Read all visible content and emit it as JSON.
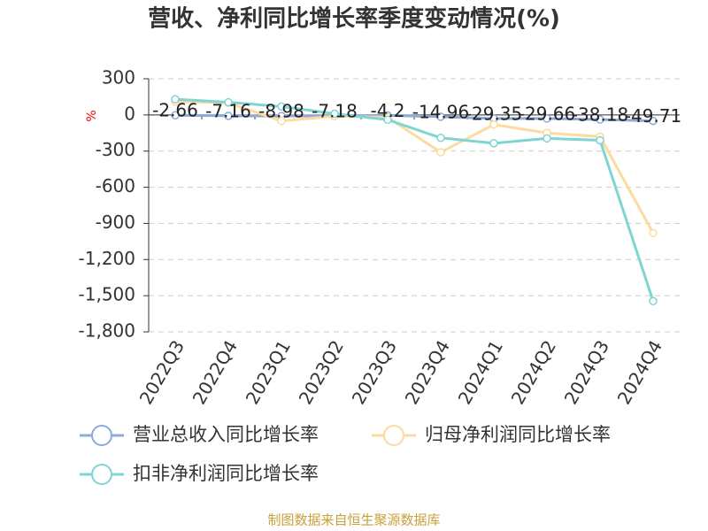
{
  "chart_data": {
    "type": "line",
    "title": "营收、净利同比增长率季度变动情况(%)",
    "y_label": "%",
    "categories": [
      "2022Q3",
      "2022Q4",
      "2023Q1",
      "2023Q2",
      "2023Q3",
      "2023Q4",
      "2024Q1",
      "2024Q2",
      "2024Q3",
      "2024Q4"
    ],
    "series": [
      {
        "name": "营业总收入同比增长率",
        "color": "#8eaadb",
        "show_labels": true,
        "values": [
          -2.66,
          -7.16,
          -8.98,
          -7.18,
          -4.2,
          -14.96,
          -29.35,
          -29.66,
          -38.18,
          -49.71
        ]
      },
      {
        "name": "归母净利润同比增长率",
        "color": "#fddb9e",
        "values": [
          110,
          100,
          -50,
          -10,
          -20,
          -310,
          -80,
          -150,
          -180,
          -980
        ]
      },
      {
        "name": "扣非净利润同比增长率",
        "color": "#7fd4d4",
        "values": [
          130,
          105,
          70,
          10,
          -40,
          -190,
          -235,
          -195,
          -210,
          -1545
        ]
      }
    ],
    "ylim": [
      -1800,
      300
    ],
    "yticks": [
      300,
      0,
      -300,
      -600,
      -900,
      {
        "value": -1200,
        "label": "-1,200"
      },
      {
        "value": -1500,
        "label": "-1,500"
      },
      {
        "value": -1800,
        "label": "-1,800"
      }
    ],
    "grid": true,
    "source": "制图数据来自恒生聚源数据库"
  }
}
